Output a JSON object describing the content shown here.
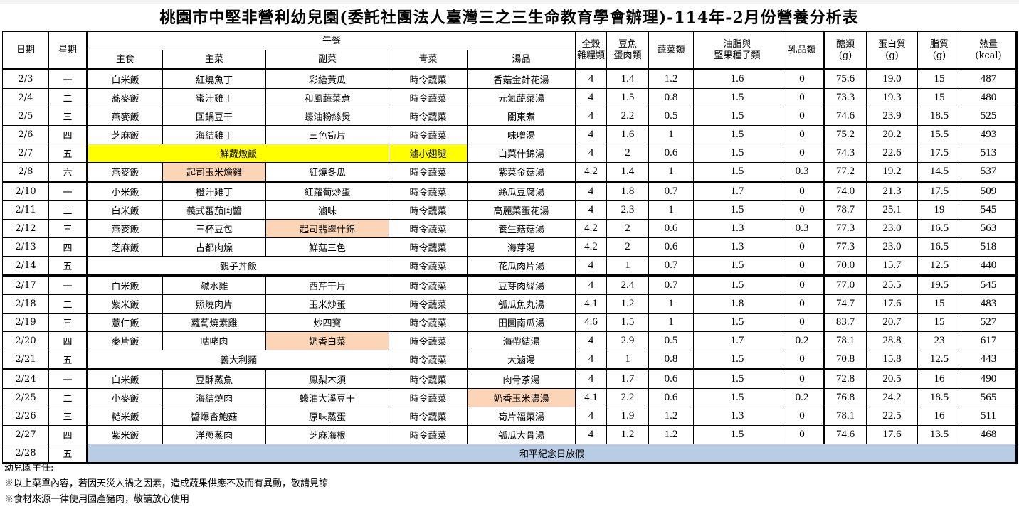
{
  "title": "桃園市中堅非營利幼兒園(委託社團法人臺灣三之三生命教育學會辦理)-114年-2月份營養分析表",
  "headers": {
    "date": "日期",
    "weekday": "星期",
    "lunch": "午餐",
    "staple": "主食",
    "main_dish": "主菜",
    "side_dish": "副菜",
    "greens": "青菜",
    "soup": "湯品",
    "grains": [
      "全穀",
      "雜糧類"
    ],
    "protein_group": [
      "豆魚",
      "蛋肉類"
    ],
    "vegetables": "蔬菜類",
    "oils": [
      "油脂與",
      "堅果種子類"
    ],
    "dairy": "乳品類",
    "carbs": [
      "醣類",
      "(g)"
    ],
    "protein": [
      "蛋白質",
      "(g)"
    ],
    "fat": [
      "脂質",
      "(g)"
    ],
    "calories": [
      "熱量",
      "(kcal)"
    ]
  },
  "rows": [
    {
      "date": "2/3",
      "day": "一",
      "staple": "白米飯",
      "main": "紅燒魚丁",
      "side": "彩繪黃瓜",
      "greens": "時令蔬菜",
      "soup": "香菇金針花湯",
      "n": [
        "4",
        "1.4",
        "1.2",
        "1.6",
        "0",
        "75.6",
        "19.0",
        "15",
        "487"
      ]
    },
    {
      "date": "2/4",
      "day": "二",
      "staple": "蕎麥飯",
      "main": "蜜汁雞丁",
      "side": "和風蔬菜煮",
      "greens": "時令蔬菜",
      "soup": "元氣蔬菜湯",
      "n": [
        "4",
        "1.5",
        "0.8",
        "1.5",
        "0",
        "73.3",
        "19.3",
        "15",
        "480"
      ]
    },
    {
      "date": "2/5",
      "day": "三",
      "staple": "燕麥飯",
      "main": "回鍋豆干",
      "side": "蠔油粉絲煲",
      "greens": "時令蔬菜",
      "soup": "關東煮",
      "n": [
        "4",
        "2.2",
        "0.5",
        "1.5",
        "0",
        "74.6",
        "23.9",
        "18.5",
        "525"
      ]
    },
    {
      "date": "2/6",
      "day": "四",
      "staple": "芝麻飯",
      "main": "海結雞丁",
      "side": "三色筍片",
      "greens": "時令蔬菜",
      "soup": "味噌湯",
      "n": [
        "4",
        "1.6",
        "1",
        "1.5",
        "0",
        "75.2",
        "20.2",
        "15.5",
        "493"
      ]
    },
    {
      "date": "2/7",
      "day": "五",
      "merged": "鮮蔬燉飯",
      "merged_color": "yellow",
      "greens": "滷小翅腿",
      "greens_color": "yellow",
      "soup": "白菜什錦湯",
      "n": [
        "4",
        "2",
        "0.6",
        "1.5",
        "0",
        "74.3",
        "22.6",
        "17.5",
        "513"
      ]
    },
    {
      "date": "2/8",
      "day": "六",
      "staple": "燕麥飯",
      "main": "起司玉米燴雞",
      "main_color": "peach",
      "side": "紅燒冬瓜",
      "greens": "時令蔬菜",
      "soup": "紫菜金菇湯",
      "n": [
        "4.2",
        "1.4",
        "1",
        "1.5",
        "0.3",
        "77.2",
        "19.2",
        "14.5",
        "537"
      ],
      "week_end": true
    },
    {
      "date": "2/10",
      "day": "一",
      "staple": "小米飯",
      "main": "橙汁雞丁",
      "side": "紅蘿蔔炒蛋",
      "greens": "時令蔬菜",
      "soup": "絲瓜豆腐湯",
      "n": [
        "4",
        "1.8",
        "0.7",
        "1.7",
        "0",
        "74.0",
        "21.3",
        "17.5",
        "509"
      ]
    },
    {
      "date": "2/11",
      "day": "二",
      "staple": "白米飯",
      "main": "義式蕃茄肉醬",
      "side": "滷味",
      "greens": "時令蔬菜",
      "soup": "高麗菜蛋花湯",
      "n": [
        "4",
        "2.3",
        "1",
        "1.5",
        "0",
        "78.7",
        "25.1",
        "19",
        "545"
      ]
    },
    {
      "date": "2/12",
      "day": "三",
      "staple": "燕麥飯",
      "main": "三杯豆包",
      "side": "起司翡翠什錦",
      "side_color": "peach",
      "greens": "時令蔬菜",
      "soup": "養生菇菇湯",
      "n": [
        "4.2",
        "2",
        "0.6",
        "1.3",
        "0.3",
        "77.3",
        "23.0",
        "16.5",
        "563"
      ]
    },
    {
      "date": "2/13",
      "day": "四",
      "staple": "芝麻飯",
      "main": "古都肉燥",
      "side": "鮮菇三色",
      "greens": "時令蔬菜",
      "soup": "海芽湯",
      "n": [
        "4.2",
        "2",
        "0.6",
        "1.3",
        "0",
        "77.3",
        "23.0",
        "16.5",
        "518"
      ]
    },
    {
      "date": "2/14",
      "day": "五",
      "merged": "親子丼飯",
      "greens": "時令蔬菜",
      "soup": "花瓜肉片湯",
      "n": [
        "4",
        "1",
        "0.7",
        "1.5",
        "0",
        "70.0",
        "15.7",
        "12.5",
        "440"
      ],
      "week_end": true
    },
    {
      "date": "2/17",
      "day": "一",
      "staple": "白米飯",
      "main": "鹹水雞",
      "side": "西芹干片",
      "greens": "時令蔬菜",
      "soup": "豆芽肉絲湯",
      "n": [
        "4",
        "2.4",
        "0.7",
        "1.5",
        "0",
        "77.0",
        "25.5",
        "19.5",
        "545"
      ]
    },
    {
      "date": "2/18",
      "day": "二",
      "staple": "紫米飯",
      "main": "照燒肉片",
      "side": "玉米炒蛋",
      "greens": "時令蔬菜",
      "soup": "瓠瓜魚丸湯",
      "n": [
        "4.1",
        "1.2",
        "1",
        "1.8",
        "0",
        "74.7",
        "17.6",
        "15",
        "483"
      ]
    },
    {
      "date": "2/19",
      "day": "三",
      "staple": "薏仁飯",
      "main": "蘿蔔燒素雞",
      "side": "炒四寶",
      "greens": "時令蔬菜",
      "soup": "田園南瓜湯",
      "n": [
        "4.6",
        "1.5",
        "1",
        "1.5",
        "0",
        "83.7",
        "20.7",
        "15",
        "527"
      ]
    },
    {
      "date": "2/20",
      "day": "四",
      "staple": "麥片飯",
      "main": "咕咾肉",
      "side": "奶香白菜",
      "side_color": "peach",
      "greens": "時令蔬菜",
      "soup": "海帶結湯",
      "n": [
        "4",
        "2.9",
        "0.5",
        "1.7",
        "0.2",
        "78.1",
        "28.8",
        "23",
        "617"
      ]
    },
    {
      "date": "2/21",
      "day": "五",
      "merged": "義大利麵",
      "greens": "時令蔬菜",
      "soup": "大滷湯",
      "n": [
        "4",
        "1",
        "0.8",
        "1.5",
        "0",
        "70.8",
        "15.8",
        "12.5",
        "443"
      ],
      "week_end": true
    },
    {
      "date": "2/24",
      "day": "一",
      "staple": "白米飯",
      "main": "豆酥蒸魚",
      "side": "鳳梨木須",
      "greens": "時令蔬菜",
      "soup": "肉骨茶湯",
      "n": [
        "4",
        "1.7",
        "0.6",
        "1.5",
        "0",
        "72.8",
        "20.5",
        "16",
        "490"
      ]
    },
    {
      "date": "2/25",
      "day": "二",
      "staple": "小麥飯",
      "main": "海結燒肉",
      "side": "蠔油大溪豆干",
      "greens": "時令蔬菜",
      "soup": "奶香玉米濃湯",
      "soup_color": "peach",
      "n": [
        "4.1",
        "2.2",
        "0.6",
        "1.5",
        "0.2",
        "76.8",
        "24.2",
        "18.5",
        "565"
      ]
    },
    {
      "date": "2/26",
      "day": "三",
      "staple": "糙米飯",
      "main": "醬爆杏鮑菇",
      "side": "原味蒸蛋",
      "greens": "時令蔬菜",
      "soup": "筍片福菜湯",
      "n": [
        "4",
        "1.9",
        "1.2",
        "1.3",
        "0",
        "78.1",
        "22.5",
        "16",
        "511"
      ]
    },
    {
      "date": "2/27",
      "day": "四",
      "staple": "紫米飯",
      "main": "洋蔥蒸肉",
      "side": "芝麻海根",
      "greens": "時令蔬菜",
      "soup": "瓠瓜大骨湯",
      "n": [
        "4",
        "1.2",
        "1.2",
        "1.5",
        "0",
        "74.6",
        "17.6",
        "13.5",
        "468"
      ]
    },
    {
      "date": "2/28",
      "day": "五",
      "holiday": "和平紀念日放假",
      "holiday_color": "blue",
      "week_end": true
    }
  ],
  "colors": {
    "yellow": "#ffff00",
    "peach": "#fbd5b5",
    "blue": "#b8cce4"
  },
  "footer": {
    "director": "幼兒園主任:",
    "note1": "※以上菜單內容，若因天災人禍之因素，造成蔬果供應不及而有異動，敬請見諒",
    "note2": "※食材來源一律使用國產豬肉，敬請放心使用"
  }
}
